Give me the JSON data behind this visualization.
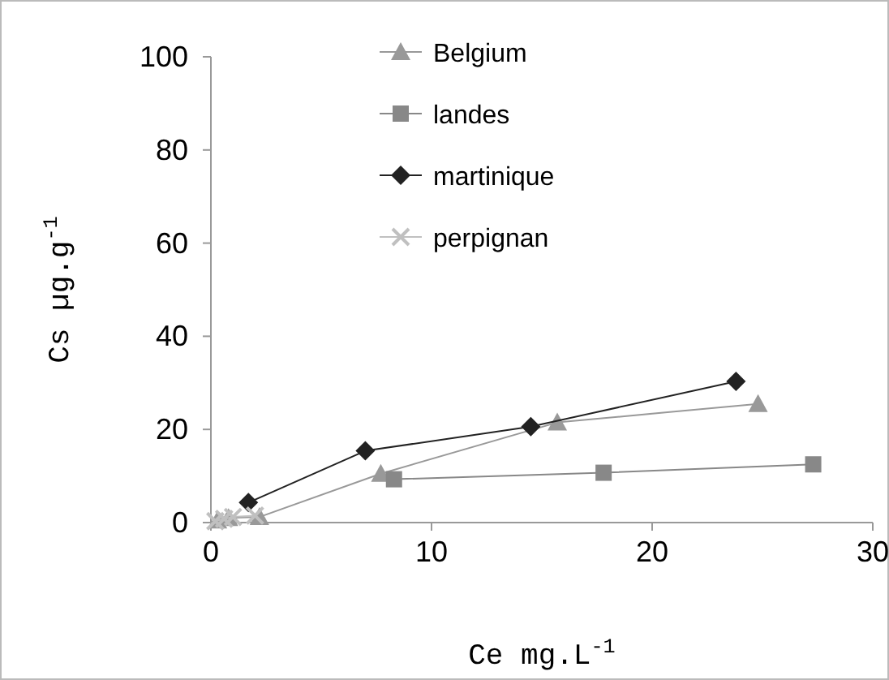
{
  "chart_data": {
    "type": "line",
    "xlabel": "Ce mg.L$^{-1}$",
    "ylabel": "Cs µg.g$^{-1}$",
    "xlim": [
      0,
      30
    ],
    "ylim": [
      0,
      100
    ],
    "xticks": [
      0,
      10,
      20,
      30
    ],
    "yticks": [
      0,
      20,
      40,
      60,
      80,
      100
    ],
    "grid": false,
    "legend": "top",
    "series": [
      {
        "name": "Belgium",
        "color": "#999999",
        "marker": "triangle",
        "x": [
          0.3,
          0.8,
          2.2,
          7.7,
          15.7,
          24.8
        ],
        "values": [
          0.5,
          1,
          1.2,
          10.5,
          21.5,
          25.5
        ]
      },
      {
        "name": "landes",
        "color": "#888888",
        "marker": "square",
        "x": [
          8.3,
          17.8,
          27.3
        ],
        "values": [
          9.3,
          10.7,
          12.5
        ]
      },
      {
        "name": "martinique",
        "color": "#222222",
        "marker": "diamond",
        "x": [
          1.7,
          7,
          14.5,
          23.8
        ],
        "values": [
          4.3,
          15.4,
          20.6,
          30.3
        ]
      },
      {
        "name": "perpignan",
        "color": "#c0c0c0",
        "marker": "cross",
        "x": [
          0.2,
          0.6,
          1,
          2
        ],
        "values": [
          0.3,
          0.8,
          1.2,
          1.5
        ]
      }
    ]
  }
}
